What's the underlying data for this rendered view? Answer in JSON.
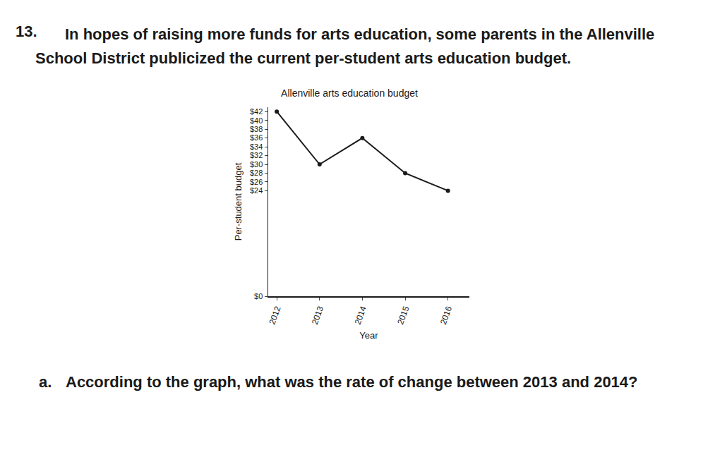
{
  "question": {
    "number": "13.",
    "text": "In hopes of raising more funds for arts education, some parents in the Allenville School District publicized the current per-student arts education budget.",
    "part_a": {
      "label": "a.",
      "text": "According to the graph, what was the rate of change between 2013 and 2014?"
    }
  },
  "chart_data": {
    "type": "line",
    "title": "Allenville arts education budget",
    "x_label": "Year",
    "y_label": "Per-student budget",
    "categories": [
      "2012",
      "2013",
      "2014",
      "2015",
      "2016"
    ],
    "values": [
      42,
      30,
      36,
      28,
      24
    ],
    "color": "#1a1a1a",
    "marker": "circle",
    "line_style": "solid",
    "ylim": [
      0,
      43
    ],
    "yticks": [
      {
        "value": 0,
        "label": "$0"
      },
      {
        "value": 24,
        "label": "$24"
      },
      {
        "value": 26,
        "label": "$26"
      },
      {
        "value": 28,
        "label": "$28"
      },
      {
        "value": 30,
        "label": "$30"
      },
      {
        "value": 32,
        "label": "$32"
      },
      {
        "value": 34,
        "label": "$34"
      },
      {
        "value": 36,
        "label": "$36"
      },
      {
        "value": 38,
        "label": "$38"
      },
      {
        "value": 40,
        "label": "$40"
      },
      {
        "value": 42,
        "label": "$42"
      }
    ],
    "grid": false
  }
}
